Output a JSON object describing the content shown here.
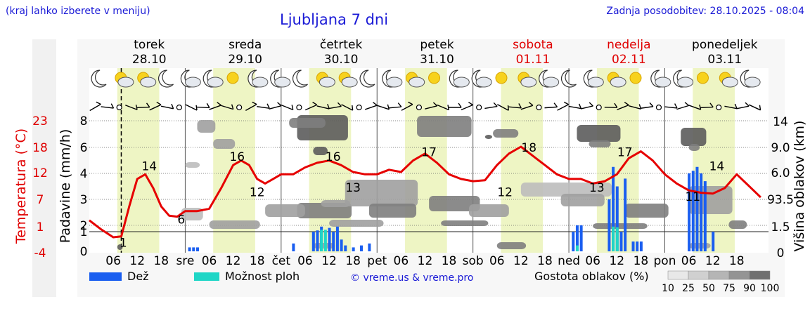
{
  "header": {
    "hint": "(kraj lahko izberete v meniju)",
    "title": "Ljubljana 7 dni",
    "updated": "Zadnja posodobitev: 28.10.2025 - 08:04"
  },
  "days": [
    {
      "name": "torek",
      "date": "28.10",
      "weekend": false
    },
    {
      "name": "sreda",
      "date": "29.10",
      "weekend": false
    },
    {
      "name": "četrtek",
      "date": "30.10",
      "weekend": false
    },
    {
      "name": "petek",
      "date": "31.10",
      "weekend": false
    },
    {
      "name": "sobota",
      "date": "01.11",
      "weekend": true
    },
    {
      "name": "nedelja",
      "date": "02.11",
      "weekend": true
    },
    {
      "name": "ponedeljek",
      "date": "03.11",
      "weekend": false
    }
  ],
  "x_ticks": [
    "06",
    "12",
    "18",
    "sre",
    "06",
    "12",
    "18",
    "čet",
    "06",
    "12",
    "18",
    "pet",
    "06",
    "12",
    "18",
    "sob",
    "06",
    "12",
    "18",
    "ned",
    "06",
    "12",
    "18",
    "pon",
    "06",
    "12",
    "18"
  ],
  "colors": {
    "temperature": "#e60000",
    "rain": "#1a5ef0",
    "showers": "#1fd6c6",
    "daylight": "#eef5c4",
    "axis_left_temp": "#e00000",
    "weekend": "#e00000"
  },
  "legend": {
    "rain": "Dež",
    "showers": "Možnost ploh",
    "copyright": "© vreme.us & vreme.pro",
    "cloud_density": "Gostota oblakov (%)",
    "cloud_scale": [
      "10",
      "25",
      "50",
      "75",
      "90",
      "100"
    ]
  },
  "chart_data": {
    "type": "line",
    "x_unit": "hours since 28.10 00:00",
    "temperature": {
      "label": "Temperatura (°C)",
      "ticks": [
        23,
        18,
        12,
        7,
        1,
        -4
      ],
      "x": [
        0,
        3,
        6,
        8,
        10,
        12,
        14,
        16,
        18,
        20,
        22,
        24,
        27,
        30,
        33,
        36,
        38,
        40,
        42,
        44,
        46,
        48,
        51,
        54,
        57,
        60,
        63,
        66,
        69,
        72,
        75,
        78,
        81,
        84,
        87,
        90,
        93,
        96,
        99,
        102,
        105,
        108,
        111,
        114,
        117,
        120,
        123,
        126,
        129,
        132,
        135,
        138,
        141,
        144,
        147,
        150,
        153,
        156,
        159,
        162,
        165,
        168
      ],
      "y": [
        4,
        2,
        0.3,
        0.5,
        7,
        13,
        14,
        11,
        7,
        5,
        4.8,
        6,
        6,
        6.5,
        11,
        16,
        17,
        16,
        13,
        12,
        13,
        14,
        14,
        15.5,
        16.5,
        17,
        16,
        14.5,
        14,
        14,
        15,
        14.5,
        17,
        18.5,
        16.5,
        14,
        13,
        12.5,
        12.7,
        16,
        18.5,
        20,
        18,
        16,
        14,
        13,
        13,
        12,
        12.5,
        14,
        17.5,
        19,
        17,
        14,
        12,
        10.5,
        10,
        9.8,
        11,
        14,
        11.5,
        9
      ],
      "labels": [
        {
          "x": 8.5,
          "y": 1,
          "text": "1"
        },
        {
          "x": 15,
          "y": 14,
          "text": "14"
        },
        {
          "x": 23,
          "y": 6,
          "text": "6"
        },
        {
          "x": 37,
          "y": 16,
          "text": "16"
        },
        {
          "x": 42,
          "y": 12,
          "text": "12"
        },
        {
          "x": 61,
          "y": 16,
          "text": "16"
        },
        {
          "x": 66,
          "y": 13,
          "text": "13"
        },
        {
          "x": 85,
          "y": 17,
          "text": "17"
        },
        {
          "x": 104,
          "y": 12,
          "text": "12"
        },
        {
          "x": 110,
          "y": 18,
          "text": "18"
        },
        {
          "x": 127,
          "y": 13,
          "text": "13"
        },
        {
          "x": 134,
          "y": 17,
          "text": "17"
        },
        {
          "x": 151,
          "y": 11,
          "text": "11"
        },
        {
          "x": 157,
          "y": 14,
          "text": "14"
        }
      ]
    },
    "precipitation": {
      "label": "Padavine (mm/h)",
      "ticks": [
        8,
        6,
        4,
        3,
        2,
        1,
        0
      ],
      "rain": [
        [
          25,
          0.2
        ],
        [
          26,
          0.2
        ],
        [
          27,
          0.2
        ],
        [
          51,
          0.4
        ],
        [
          56,
          1
        ],
        [
          57,
          1.2
        ],
        [
          58,
          1.8
        ],
        [
          60,
          1.6
        ],
        [
          61,
          1
        ],
        [
          62,
          1.8
        ],
        [
          63,
          0.6
        ],
        [
          64,
          0.3
        ],
        [
          66,
          0.2
        ],
        [
          68,
          0.3
        ],
        [
          70,
          0.4
        ],
        [
          121,
          1
        ],
        [
          122,
          2
        ],
        [
          123,
          2
        ],
        [
          130,
          3
        ],
        [
          131,
          4.5
        ],
        [
          132,
          3.5
        ],
        [
          133,
          1
        ],
        [
          134,
          3.8
        ],
        [
          136,
          0.5
        ],
        [
          137,
          0.5
        ],
        [
          138,
          0.5
        ],
        [
          150,
          4
        ],
        [
          151,
          4.2
        ],
        [
          152,
          4.5
        ],
        [
          153,
          4
        ],
        [
          154,
          3.7
        ],
        [
          156,
          1
        ]
      ],
      "showers": [
        [
          58,
          1.3
        ],
        [
          59,
          1.3
        ],
        [
          122,
          0.3
        ],
        [
          131,
          1.8
        ],
        [
          132,
          1.7
        ]
      ]
    },
    "cloud_height": {
      "label": "Višina oblakov (km)",
      "ticks": [
        "14",
        "9.0",
        "6.0",
        "93.5",
        "1.5",
        "0"
      ]
    }
  }
}
